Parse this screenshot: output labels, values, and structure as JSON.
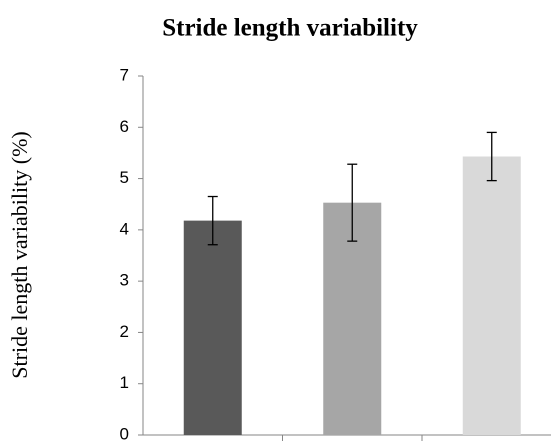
{
  "chart_data": {
    "type": "bar",
    "title": "Stride length variability",
    "y_label": "Stride length variability (%)",
    "categories": [
      null,
      null,
      null
    ],
    "values": [
      4.18,
      4.53,
      5.43
    ],
    "errors": [
      0.47,
      0.75,
      0.47
    ],
    "colors": [
      "#595959",
      "#a6a6a6",
      "#d9d9d9"
    ],
    "ylim": [
      0,
      7
    ],
    "yticks": [
      0,
      1,
      2,
      3,
      4,
      5,
      6,
      7
    ],
    "grid": false
  }
}
